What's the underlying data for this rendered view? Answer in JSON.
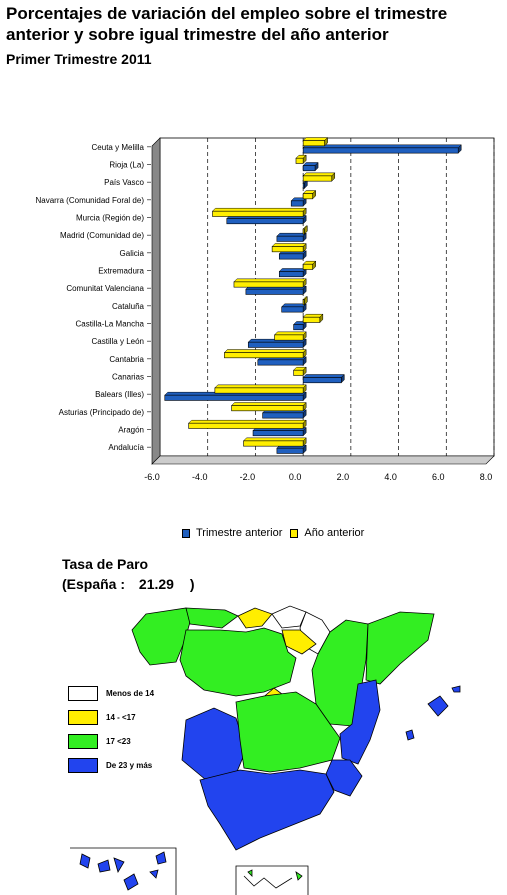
{
  "title": "Porcentajes de variación del empleo sobre el trimestre anterior y sobre igual trimestre del año anterior",
  "subtitle": "Primer Trimestre 2011",
  "chart_data": {
    "type": "bar",
    "orientation": "horizontal",
    "categories": [
      "Ceuta y Melilla",
      "Rioja (La)",
      "País Vasco",
      "Navarra (Comunidad Foral de)",
      "Murcia (Región de)",
      "Madrid (Comunidad de)",
      "Galicia",
      "Extremadura",
      "Comunitat Valenciana",
      "Cataluña",
      "Castilla-La Mancha",
      "Castilla y León",
      "Cantabria",
      "Canarias",
      "Balears (Illes)",
      "Asturias (Principado de)",
      "Aragón",
      "Andalucía"
    ],
    "series": [
      {
        "name": "Trimestre anterior",
        "color": "#1f5fbf",
        "values": [
          6.5,
          0.5,
          0.0,
          -0.5,
          -3.2,
          -1.1,
          -1.0,
          -1.0,
          -2.4,
          -0.9,
          -0.4,
          -2.3,
          -1.9,
          1.6,
          -5.8,
          -1.7,
          -2.1,
          -1.1
        ]
      },
      {
        "name": "Año anterior",
        "color": "#ffee00",
        "values": [
          0.9,
          -0.3,
          1.2,
          0.4,
          -3.8,
          0.0,
          -1.3,
          0.4,
          -2.9,
          0.0,
          0.7,
          -1.2,
          -3.3,
          -0.4,
          -3.7,
          -3.0,
          -4.8,
          -2.5
        ]
      }
    ],
    "xlim": [
      -6.0,
      8.0
    ],
    "xticks": [
      "-6.0",
      "-4.0",
      "-2.0",
      "0.0",
      "2.0",
      "4.0",
      "6.0",
      "8.0"
    ],
    "grid": "dashed vertical",
    "legend_position": "bottom"
  },
  "map": {
    "title": "Tasa de Paro",
    "spain_label": "(España :",
    "spain_value": "21.29",
    "spain_close": ")",
    "legend": [
      {
        "label": "Menos de 14",
        "color": "#ffffff"
      },
      {
        "label": "14 - <17",
        "color": "#ffee00"
      },
      {
        "label": "17 <23",
        "color": "#33ee22"
      },
      {
        "label": "De 23 y más",
        "color": "#2244ee"
      }
    ]
  }
}
